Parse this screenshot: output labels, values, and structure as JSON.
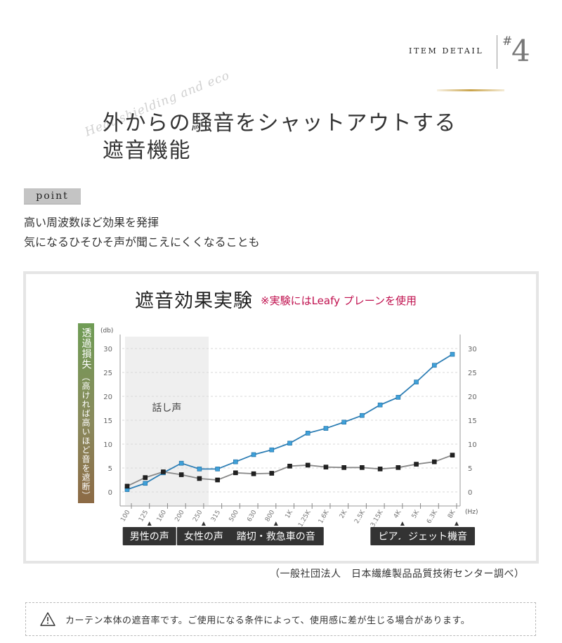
{
  "header": {
    "item_detail": "ITEM DETAIL",
    "hash": "#",
    "item_number": "4",
    "script_text": "Heat shielding and eco"
  },
  "headline": {
    "line1": "外からの騒音をシャットアウトする",
    "line2": "遮音機能"
  },
  "point": {
    "badge": "point",
    "line1": "高い周波数ほど効果を発揮",
    "line2": "気になるひそひそ声が聞こえにくくなることも"
  },
  "chart_data": {
    "type": "line",
    "title": "遮音効果実験",
    "note": "※実験にはLeafy プレーンを使用",
    "ylabel": "透過損失",
    "ylabel_sub": "（高ければ高いほど音を遮断）",
    "y_unit": "(db)",
    "x_unit": "(Hz)",
    "ylim": [
      0,
      30
    ],
    "yticks": [
      0,
      5,
      10,
      15,
      20,
      25,
      30
    ],
    "categories": [
      "100",
      "125",
      "160",
      "200",
      "250",
      "315",
      "500",
      "630",
      "800",
      "1K",
      "1.25K",
      "1.6K",
      "2K",
      "2.5K",
      "3.15K",
      "4K",
      "5K",
      "6.3K",
      "8K"
    ],
    "series": [
      {
        "color": "#2f7fb5",
        "marker_color": "#3fa0d8",
        "values": [
          0.5,
          1.8,
          4,
          6,
          4.8,
          4.8,
          6.3,
          7.8,
          8.8,
          10.2,
          12.3,
          13.3,
          14.6,
          16,
          18.2,
          19.8,
          23,
          26.5,
          28.8
        ]
      },
      {
        "color": "#888888",
        "marker_color": "#222222",
        "values": [
          1.2,
          3,
          4.2,
          3.6,
          2.8,
          2.5,
          4,
          3.8,
          3.9,
          5.4,
          5.6,
          5.2,
          5.1,
          5.1,
          4.8,
          5.1,
          5.8,
          6.3,
          7.7
        ]
      }
    ],
    "shaded_region": {
      "from": "100",
      "to": "250",
      "label": "話し声"
    },
    "source_labels": [
      {
        "label": "男性の声",
        "at": "125"
      },
      {
        "label": "女性の声",
        "at": "250"
      },
      {
        "label": "踏切・救急車の音",
        "at": "800"
      },
      {
        "label": "ピアノの音",
        "at": "4K"
      },
      {
        "label": "ジェット機音",
        "at": "8K"
      }
    ]
  },
  "source": "（一般社団法人　日本繊維製品品質技術センター調べ）",
  "notice": {
    "icon": "warning-triangle-icon",
    "text": "カーテン本体の遮音率です。ご使用になる条件によって、使用感に差が生じる場合があります。"
  }
}
